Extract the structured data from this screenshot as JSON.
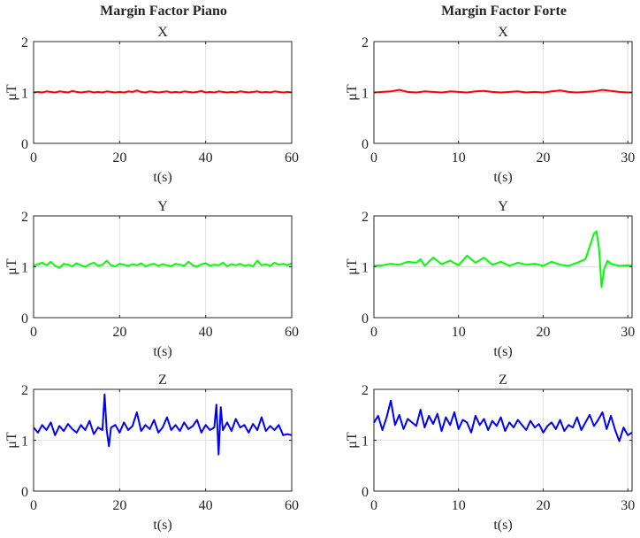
{
  "chart_data": [
    {
      "type": "line",
      "column_title": "Margin Factor Piano",
      "title": "X",
      "xlabel": "t(s)",
      "ylabel": "μT",
      "xlim": [
        0,
        60
      ],
      "ylim": [
        0,
        2
      ],
      "xticks": [
        0,
        20,
        40,
        60
      ],
      "yticks": [
        0,
        1,
        2
      ],
      "grid": true,
      "color": "#ff0000",
      "series": [
        {
          "x": [
            0,
            1,
            2,
            3,
            4,
            5,
            6,
            7,
            8,
            9,
            10,
            11,
            12,
            13,
            14,
            15,
            16,
            17,
            18,
            19,
            20,
            21,
            22,
            23,
            24,
            25,
            26,
            27,
            28,
            29,
            30,
            31,
            32,
            33,
            34,
            35,
            36,
            37,
            38,
            39,
            40,
            41,
            42,
            43,
            44,
            45,
            46,
            47,
            48,
            49,
            50,
            51,
            52,
            53,
            54,
            55,
            56,
            57,
            58,
            59,
            60
          ],
          "y": [
            1.0,
            1.01,
            1.0,
            1.02,
            1.01,
            1.0,
            1.02,
            1.01,
            1.0,
            1.03,
            1.01,
            1.0,
            1.01,
            1.02,
            1.0,
            1.01,
            1.0,
            1.02,
            1.01,
            1.0,
            1.01,
            1.0,
            1.02,
            1.01,
            1.04,
            1.01,
            1.0,
            1.02,
            1.01,
            1.0,
            1.01,
            1.02,
            1.0,
            1.01,
            1.0,
            1.02,
            1.01,
            1.0,
            1.01,
            1.03,
            1.0,
            1.01,
            1.0,
            1.02,
            1.01,
            1.0,
            1.01,
            1.0,
            1.02,
            1.01,
            1.0,
            1.01,
            1.02,
            1.0,
            1.01,
            1.0,
            1.02,
            1.01,
            1.0,
            1.01,
            1.0
          ]
        }
      ]
    },
    {
      "type": "line",
      "column_title": "Margin Factor Forte",
      "title": "X",
      "xlabel": "t(s)",
      "ylabel": "μT",
      "xlim": [
        0,
        30.5
      ],
      "ylim": [
        0,
        2
      ],
      "xticks": [
        0,
        10,
        20,
        30
      ],
      "yticks": [
        0,
        1,
        2
      ],
      "grid": true,
      "color": "#ff0000",
      "series": [
        {
          "x": [
            0,
            1,
            2,
            3,
            4,
            5,
            6,
            7,
            8,
            9,
            10,
            11,
            12,
            13,
            14,
            15,
            16,
            17,
            18,
            19,
            20,
            21,
            22,
            23,
            24,
            25,
            26,
            27,
            28,
            29,
            30,
            30.5
          ],
          "y": [
            1.0,
            1.01,
            1.02,
            1.05,
            1.01,
            1.0,
            1.02,
            1.01,
            1.0,
            1.02,
            1.01,
            1.0,
            1.02,
            1.03,
            1.01,
            1.0,
            1.01,
            1.02,
            1.0,
            1.01,
            1.0,
            1.02,
            1.04,
            1.01,
            1.0,
            1.01,
            1.02,
            1.05,
            1.03,
            1.01,
            1.0,
            1.0
          ]
        }
      ]
    },
    {
      "type": "line",
      "title": "Y",
      "xlabel": "t(s)",
      "ylabel": "μT",
      "xlim": [
        0,
        60
      ],
      "ylim": [
        0,
        2
      ],
      "xticks": [
        0,
        20,
        40,
        60
      ],
      "yticks": [
        0,
        1,
        2
      ],
      "grid": true,
      "color": "#00ff00",
      "series": [
        {
          "x": [
            0,
            1,
            2,
            3,
            4,
            5,
            6,
            7,
            8,
            9,
            10,
            11,
            12,
            13,
            14,
            15,
            16,
            17,
            18,
            19,
            20,
            21,
            22,
            23,
            24,
            25,
            26,
            27,
            28,
            29,
            30,
            31,
            32,
            33,
            34,
            35,
            36,
            37,
            38,
            39,
            40,
            41,
            42,
            43,
            44,
            45,
            46,
            47,
            48,
            49,
            50,
            51,
            52,
            53,
            54,
            55,
            56,
            57,
            58,
            59,
            60
          ],
          "y": [
            1.02,
            1.05,
            1.08,
            1.03,
            1.1,
            1.02,
            0.98,
            1.06,
            1.04,
            1.01,
            1.07,
            1.03,
            1.0,
            1.05,
            1.08,
            1.02,
            1.04,
            1.12,
            1.03,
            1.01,
            1.06,
            1.04,
            1.02,
            1.05,
            1.03,
            1.07,
            1.01,
            1.04,
            1.06,
            1.02,
            1.05,
            1.03,
            1.01,
            1.06,
            1.04,
            1.02,
            1.1,
            1.03,
            1.0,
            1.05,
            1.07,
            1.02,
            1.04,
            1.03,
            1.08,
            1.01,
            1.05,
            1.03,
            1.06,
            1.02,
            1.04,
            1.01,
            1.12,
            1.03,
            1.05,
            1.02,
            1.08,
            1.04,
            1.06,
            1.03,
            1.07
          ]
        }
      ]
    },
    {
      "type": "line",
      "title": "Y",
      "xlabel": "t(s)",
      "ylabel": "μT",
      "xlim": [
        0,
        30.5
      ],
      "ylim": [
        0,
        2
      ],
      "xticks": [
        0,
        10,
        20,
        30
      ],
      "yticks": [
        0,
        1,
        2
      ],
      "grid": true,
      "color": "#00ff00",
      "series": [
        {
          "x": [
            0,
            1,
            2,
            3,
            4,
            5,
            5.5,
            6,
            7,
            8,
            9,
            10,
            11,
            12,
            13,
            14,
            15,
            16,
            17,
            18,
            19,
            20,
            21,
            22,
            23,
            24,
            25,
            25.5,
            26,
            26.3,
            26.6,
            26.9,
            27.2,
            27.6,
            28,
            29,
            30,
            30.5
          ],
          "y": [
            1.02,
            1.03,
            1.06,
            1.04,
            1.1,
            1.08,
            1.15,
            1.02,
            1.18,
            1.05,
            1.12,
            1.03,
            1.22,
            1.08,
            1.18,
            1.04,
            1.1,
            1.02,
            1.08,
            1.04,
            1.06,
            1.02,
            1.1,
            1.04,
            1.02,
            1.08,
            1.15,
            1.4,
            1.65,
            1.7,
            1.35,
            0.6,
            0.95,
            1.12,
            1.06,
            1.02,
            1.03,
            1.02
          ]
        }
      ]
    },
    {
      "type": "line",
      "title": "Z",
      "xlabel": "t(s)",
      "ylabel": "μT",
      "xlim": [
        0,
        60
      ],
      "ylim": [
        0,
        2
      ],
      "xticks": [
        0,
        20,
        40,
        60
      ],
      "yticks": [
        0,
        1,
        2
      ],
      "grid": true,
      "color": "#0000ff",
      "series": [
        {
          "x": [
            0,
            1,
            2,
            3,
            4,
            5,
            6,
            7,
            8,
            9,
            10,
            11,
            12,
            13,
            14,
            15,
            16,
            16.5,
            17,
            17.5,
            18,
            19,
            20,
            21,
            22,
            23,
            24,
            25,
            26,
            27,
            28,
            29,
            30,
            31,
            32,
            33,
            34,
            35,
            36,
            37,
            38,
            39,
            40,
            41,
            42,
            42.5,
            43,
            43.5,
            44,
            45,
            46,
            47,
            48,
            49,
            50,
            51,
            52,
            53,
            54,
            55,
            56,
            57,
            58,
            59,
            60
          ],
          "y": [
            1.25,
            1.15,
            1.3,
            1.2,
            1.35,
            1.1,
            1.28,
            1.18,
            1.32,
            1.22,
            1.15,
            1.3,
            1.2,
            1.38,
            1.12,
            1.25,
            1.2,
            1.9,
            1.2,
            0.88,
            1.25,
            1.3,
            1.15,
            1.35,
            1.2,
            1.28,
            1.55,
            1.18,
            1.3,
            1.22,
            1.4,
            1.15,
            1.25,
            1.45,
            1.2,
            1.3,
            1.18,
            1.35,
            1.22,
            1.28,
            1.4,
            1.15,
            1.3,
            1.2,
            1.25,
            1.7,
            0.72,
            1.65,
            1.2,
            1.35,
            1.18,
            1.42,
            1.25,
            1.3,
            1.15,
            1.32,
            1.2,
            1.45,
            1.18,
            1.28,
            1.2,
            1.3,
            1.1,
            1.12,
            1.1
          ]
        }
      ]
    },
    {
      "type": "line",
      "title": "Z",
      "xlabel": "t(s)",
      "ylabel": "μT",
      "xlim": [
        0,
        30.5
      ],
      "ylim": [
        0,
        2
      ],
      "xticks": [
        0,
        10,
        20,
        30
      ],
      "yticks": [
        0,
        1,
        2
      ],
      "grid": true,
      "color": "#0000ff",
      "series": [
        {
          "x": [
            0,
            0.5,
            1,
            1.5,
            2,
            2.5,
            3,
            3.5,
            4,
            4.5,
            5,
            5.5,
            6,
            6.5,
            7,
            7.5,
            8,
            8.5,
            9,
            9.5,
            10,
            10.5,
            11,
            11.5,
            12,
            12.5,
            13,
            13.5,
            14,
            14.5,
            15,
            15.5,
            16,
            16.5,
            17,
            17.5,
            18,
            18.5,
            19,
            19.5,
            20,
            20.5,
            21,
            21.5,
            22,
            22.5,
            23,
            23.5,
            24,
            24.5,
            25,
            25.5,
            26,
            26.5,
            27,
            27.5,
            28,
            28.5,
            29,
            29.5,
            30,
            30.5
          ],
          "y": [
            1.35,
            1.48,
            1.2,
            1.45,
            1.78,
            1.3,
            1.5,
            1.22,
            1.42,
            1.35,
            1.28,
            1.6,
            1.25,
            1.48,
            1.32,
            1.52,
            1.18,
            1.45,
            1.3,
            1.55,
            1.22,
            1.4,
            1.35,
            1.15,
            1.48,
            1.3,
            1.42,
            1.2,
            1.38,
            1.28,
            1.45,
            1.18,
            1.35,
            1.25,
            1.4,
            1.3,
            1.2,
            1.38,
            1.25,
            1.32,
            1.15,
            1.28,
            1.35,
            1.22,
            1.4,
            1.18,
            1.3,
            1.25,
            1.45,
            1.2,
            1.35,
            1.5,
            1.28,
            1.4,
            1.55,
            1.22,
            1.48,
            1.2,
            0.98,
            1.25,
            1.1,
            1.15
          ]
        }
      ]
    }
  ]
}
